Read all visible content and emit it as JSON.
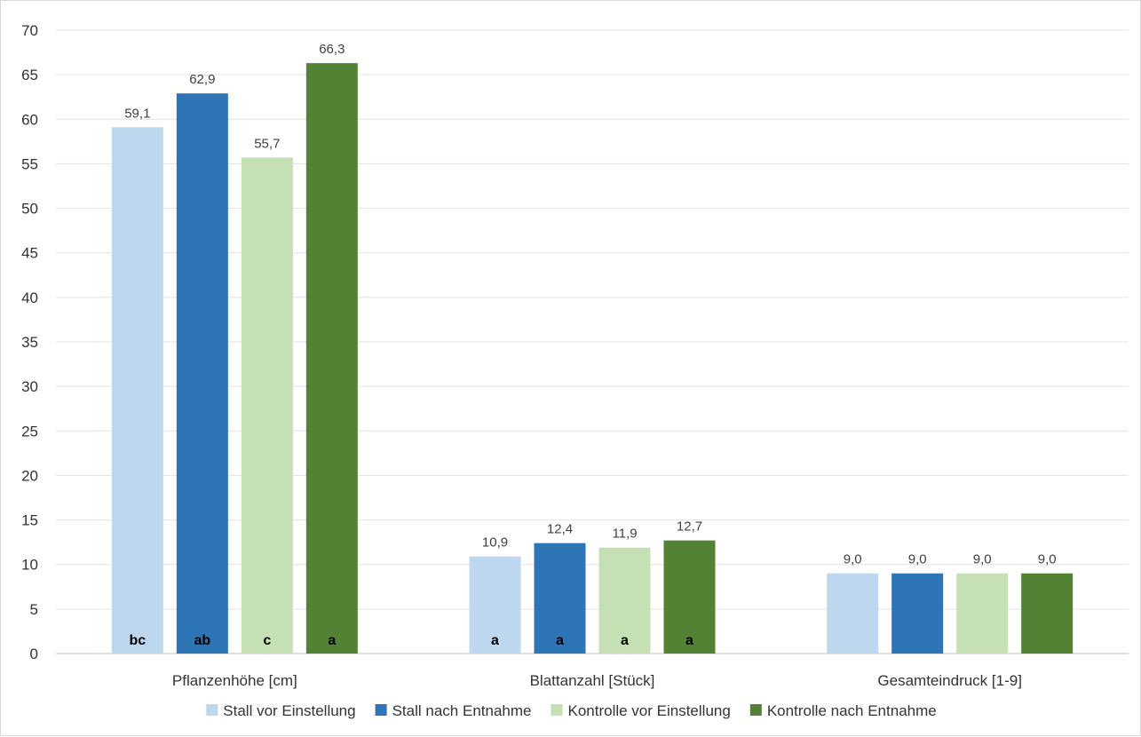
{
  "chart_data": {
    "type": "bar",
    "title": "",
    "xlabel": "",
    "ylabel": "",
    "ylim": [
      0,
      70
    ],
    "y_ticks": [
      "0",
      "5",
      "10",
      "15",
      "20",
      "25",
      "30",
      "35",
      "40",
      "45",
      "50",
      "55",
      "60",
      "65",
      "70"
    ],
    "grid": true,
    "legend_position": "bottom",
    "categories": [
      "Pflanzenhöhe [cm]",
      "Blattanzahl [Stück]",
      "Gesamteindruck [1-9]"
    ],
    "series": [
      {
        "name": "Stall vor Einstellung",
        "color": "#bdd7ee",
        "values": [
          59.1,
          10.9,
          9.0
        ],
        "value_labels": [
          "59,1",
          "10,9",
          "9,0"
        ],
        "sig_labels": [
          "bc",
          "a",
          ""
        ]
      },
      {
        "name": "Stall nach Entnahme",
        "color": "#2e75b6",
        "values": [
          62.9,
          12.4,
          9.0
        ],
        "value_labels": [
          "62,9",
          "12,4",
          "9,0"
        ],
        "sig_labels": [
          "ab",
          "a",
          ""
        ]
      },
      {
        "name": "Kontrolle vor Einstellung",
        "color": "#c5e0b4",
        "values": [
          55.7,
          11.9,
          9.0
        ],
        "value_labels": [
          "55,7",
          "11,9",
          "9,0"
        ],
        "sig_labels": [
          "c",
          "a",
          ""
        ]
      },
      {
        "name": "Kontrolle nach Entnahme",
        "color": "#548235",
        "values": [
          66.3,
          12.7,
          9.0
        ],
        "value_labels": [
          "66,3",
          "12,7",
          "9,0"
        ],
        "sig_labels": [
          "a",
          "a",
          ""
        ]
      }
    ]
  }
}
